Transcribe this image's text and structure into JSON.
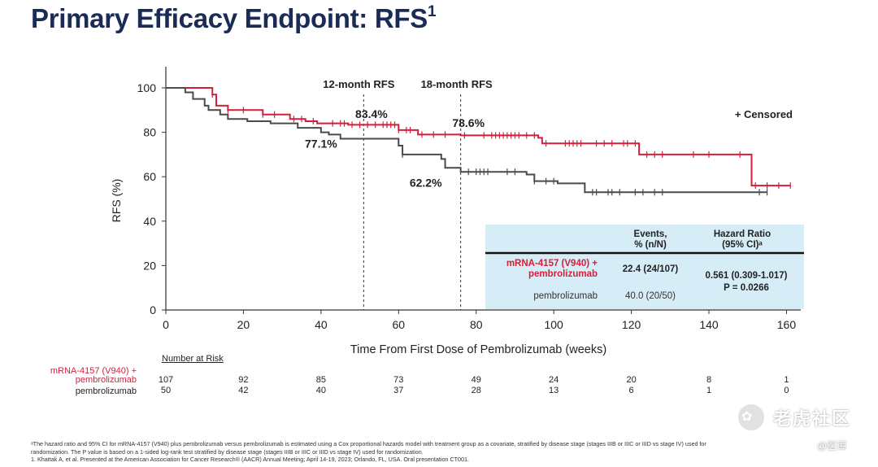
{
  "slide": {
    "title": "Primary Efficacy Endpoint: RFS",
    "title_sup": "1"
  },
  "chart_data": {
    "type": "line",
    "title": "",
    "xlabel": "Time From First Dose of Pembrolizumab (weeks)",
    "ylabel": "RFS (%)",
    "xlim": [
      0,
      162
    ],
    "ylim": [
      0,
      100
    ],
    "xticks": [
      0,
      20,
      40,
      60,
      80,
      100,
      120,
      140,
      160
    ],
    "yticks": [
      0,
      20,
      40,
      60,
      80,
      100
    ],
    "grid": false,
    "censored_legend": "+ Censored",
    "series": [
      {
        "name": "mRNA-4157 (V940) + pembrolizumab",
        "color": "#d51f3a",
        "steps": [
          [
            0,
            100
          ],
          [
            12,
            97
          ],
          [
            13,
            92
          ],
          [
            16,
            90
          ],
          [
            25,
            88
          ],
          [
            32,
            86
          ],
          [
            36,
            85
          ],
          [
            39,
            84
          ],
          [
            47,
            83.4
          ],
          [
            60,
            81
          ],
          [
            65,
            79
          ],
          [
            76,
            78.6
          ],
          [
            96,
            77.5
          ],
          [
            97,
            75
          ],
          [
            122,
            70
          ],
          [
            151,
            56
          ],
          [
            161,
            56
          ]
        ],
        "censored": [
          12,
          16,
          20,
          25,
          28,
          33,
          35,
          38,
          43,
          45,
          46,
          48,
          50,
          52,
          54,
          56,
          57,
          58,
          59,
          60,
          62,
          63,
          66,
          69,
          72,
          77,
          82,
          84,
          85,
          86,
          87,
          88,
          89,
          90,
          91,
          93,
          95,
          98,
          103,
          104,
          105,
          106,
          107,
          111,
          113,
          115,
          118,
          119,
          121,
          124,
          126,
          128,
          136,
          140,
          148,
          152,
          155,
          158,
          161
        ]
      },
      {
        "name": "pembrolizumab",
        "color": "#4a4a4a",
        "steps": [
          [
            0,
            100
          ],
          [
            5,
            98
          ],
          [
            7,
            95
          ],
          [
            10,
            92
          ],
          [
            11,
            90
          ],
          [
            14,
            88
          ],
          [
            16,
            86
          ],
          [
            21,
            85
          ],
          [
            27,
            84
          ],
          [
            34,
            82
          ],
          [
            40,
            80
          ],
          [
            42,
            79
          ],
          [
            45,
            77.1
          ],
          [
            60,
            74
          ],
          [
            61,
            70
          ],
          [
            71,
            68
          ],
          [
            72,
            64
          ],
          [
            76,
            62.2
          ],
          [
            93,
            61
          ],
          [
            95,
            58
          ],
          [
            101,
            57
          ],
          [
            108,
            53
          ],
          [
            155,
            53
          ]
        ],
        "censored": [
          61,
          78,
          80,
          81,
          82,
          83,
          88,
          90,
          95,
          98,
          100,
          110,
          111,
          114,
          115,
          117,
          121,
          123,
          126,
          128,
          153,
          155
        ]
      }
    ],
    "vlines": [
      {
        "x": 51,
        "label": "12-month RFS"
      },
      {
        "x": 76,
        "label": "18-month RFS"
      }
    ],
    "annotations": [
      {
        "text": "83.4%",
        "x": 53,
        "y": 86.5
      },
      {
        "text": "77.1%",
        "x": 40,
        "y": 73
      },
      {
        "text": "78.6%",
        "x": 78,
        "y": 82.5
      },
      {
        "text": "62.2%",
        "x": 67,
        "y": 55.5
      }
    ],
    "inset_table": {
      "headers": [
        "Events,\n% (n/N)",
        "Hazard Ratio\n(95% CI)ᵃ"
      ],
      "rows": [
        {
          "group": "mRNA-4157 (V940) +\npembrolizumab",
          "events": "22.4 (24/107)"
        },
        {
          "group": "pembrolizumab",
          "events": "40.0 (20/50)"
        }
      ],
      "hr_line1": "0.561 (0.309-1.017)",
      "hr_line2": "P = 0.0266"
    },
    "number_at_risk": {
      "title": "Number at Risk",
      "times": [
        0,
        20,
        40,
        60,
        80,
        100,
        120,
        140,
        160
      ],
      "rows": [
        {
          "label": "mRNA-4157 (V940) +\npembrolizumab",
          "values": [
            "107",
            "92",
            "85",
            "73",
            "49",
            "24",
            "20",
            "8",
            "1"
          ]
        },
        {
          "label": "pembrolizumab",
          "values": [
            "50",
            "42",
            "40",
            "37",
            "28",
            "13",
            "6",
            "1",
            "0"
          ]
        }
      ]
    }
  },
  "footnotes": {
    "a": "ᵃThe hazard ratio and 95% CI for mRNA-4157 (V940) plus pembrolizumab versus pembrolizumab is estimated using a Cox proportional hazards model with treatment group as a covariate, stratified by disease stage (stages IIIB or IIIC or IIID vs stage IV) used for",
    "b": "randomization. The P value is based on a 1-sided log-rank test stratified by disease stage (stages IIIB or IIIC or IIID vs stage IV) used for randomization.",
    "ref": "1. Khattak A, et al. Presented at the American Association for Cancer Research® (AACR) Annual Meeting; April 14-19, 2023; Orlando, FL, USA. Oral presentation CT001."
  },
  "watermark": {
    "icon": "tiger-head-icon",
    "icon_glyph": "✿",
    "brand": "老虎社区",
    "user": "@医谭"
  },
  "colors": {
    "title": "#1a2b56",
    "treatment": "#d51f3a",
    "control": "#4a4a4a",
    "inset_bg": "#d6ecf6"
  }
}
